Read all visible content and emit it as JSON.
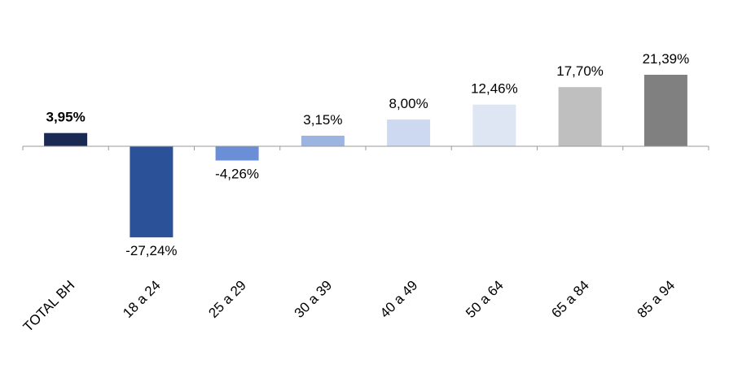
{
  "chart_data": {
    "type": "bar",
    "title": "",
    "xlabel": "",
    "ylabel": "",
    "categories": [
      "TOTAL BH",
      "18 a 24",
      "25 a 29",
      "30 a 39",
      "40 a 49",
      "50 a 64",
      "65 a 84",
      "85 a 94"
    ],
    "values": [
      3.95,
      -27.24,
      -4.26,
      3.15,
      8.0,
      12.46,
      17.7,
      21.39
    ],
    "value_labels": [
      "3,95%",
      "-27,24%",
      "-4,26%",
      "3,15%",
      "8,00%",
      "12,46%",
      "17,70%",
      "21,39%"
    ],
    "bar_colors": [
      "#1a2a52",
      "#2b5199",
      "#6a8fd6",
      "#9cb4e0",
      "#cdd9f0",
      "#dde6f2",
      "#bfbfbf",
      "#808080"
    ],
    "bold_labels": [
      true,
      false,
      false,
      false,
      false,
      false,
      false,
      false
    ],
    "ylim": [
      -27.24,
      21.39
    ],
    "grid": false,
    "legend": "none"
  }
}
